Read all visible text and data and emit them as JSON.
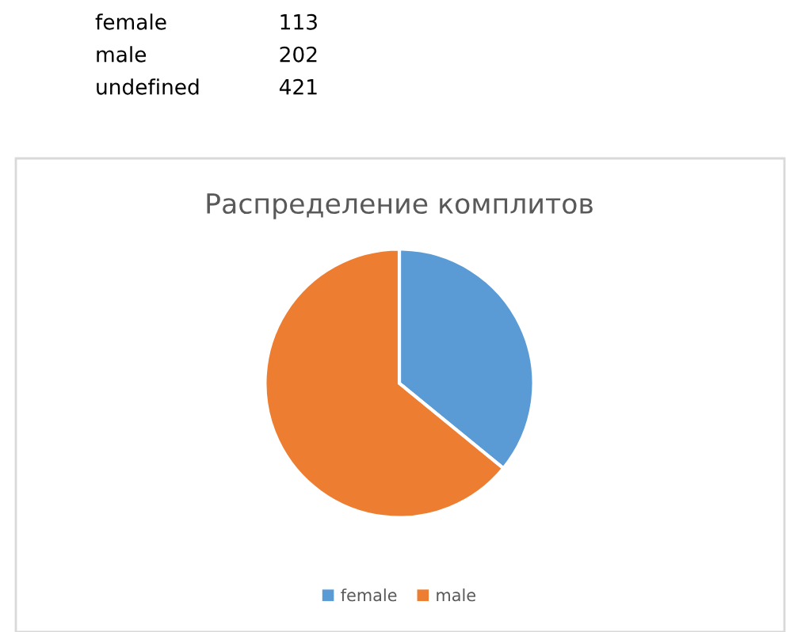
{
  "chart_data": {
    "type": "pie",
    "title": "Распределение комплитов",
    "categories": [
      "female",
      "male"
    ],
    "values": [
      35.9,
      64.1
    ],
    "colors": [
      "#5b9bd5",
      "#ed7d31"
    ],
    "legend": "bottom",
    "annotations": [
      "female",
      "113",
      "male",
      "202",
      "undefined",
      "421"
    ]
  }
}
